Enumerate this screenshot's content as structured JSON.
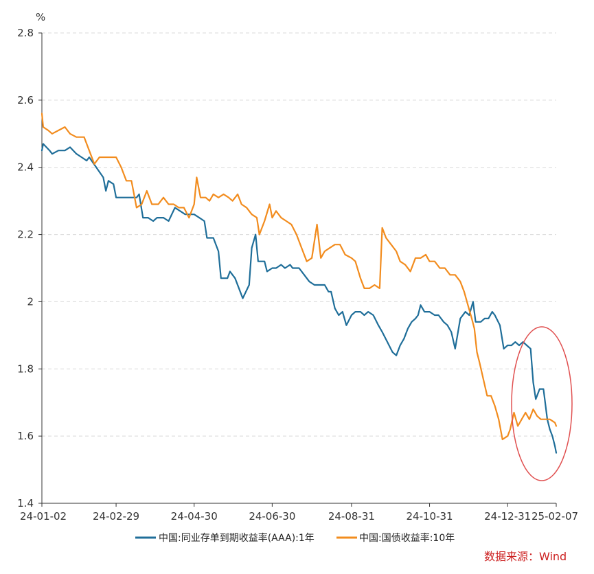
{
  "chart_data": {
    "type": "line",
    "title": "",
    "unit": "%",
    "xlabel": "",
    "ylabel": "%",
    "ylim": [
      1.4,
      2.8
    ],
    "yticks": [
      "1.4",
      "1.6",
      "1.8",
      "2",
      "2.2",
      "2.4",
      "2.6",
      "2.8"
    ],
    "yticks_values": [
      1.4,
      1.6,
      1.8,
      2.0,
      2.2,
      2.4,
      2.6,
      2.8
    ],
    "xlim": [
      "24-01-02",
      "25-02-07"
    ],
    "xticks": [
      "24-01-02",
      "24-02-29",
      "24-04-30",
      "24-06-30",
      "24-08-31",
      "24-10-31",
      "24-12-31",
      "25-02-07"
    ],
    "grid": "horizontal-dashed",
    "legend_position": "bottom",
    "series": [
      {
        "name": "中国:同业存单到期收益率(AAA):1年",
        "color": "#1f6e99",
        "points": [
          [
            "24-01-02",
            2.45
          ],
          [
            "24-01-03",
            2.47
          ],
          [
            "24-01-08",
            2.45
          ],
          [
            "24-01-10",
            2.44
          ],
          [
            "24-01-15",
            2.45
          ],
          [
            "24-01-20",
            2.45
          ],
          [
            "24-01-24",
            2.46
          ],
          [
            "24-01-29",
            2.44
          ],
          [
            "24-02-02",
            2.43
          ],
          [
            "24-02-06",
            2.42
          ],
          [
            "24-02-08",
            2.43
          ],
          [
            "24-02-19",
            2.37
          ],
          [
            "24-02-21",
            2.33
          ],
          [
            "24-02-23",
            2.36
          ],
          [
            "24-02-27",
            2.35
          ],
          [
            "24-02-29",
            2.31
          ],
          [
            "24-03-04",
            2.31
          ],
          [
            "24-03-10",
            2.31
          ],
          [
            "24-03-16",
            2.31
          ],
          [
            "24-03-18",
            2.32
          ],
          [
            "24-03-21",
            2.25
          ],
          [
            "24-03-25",
            2.25
          ],
          [
            "24-03-29",
            2.24
          ],
          [
            "24-04-01",
            2.25
          ],
          [
            "24-04-06",
            2.25
          ],
          [
            "24-04-10",
            2.24
          ],
          [
            "24-04-15",
            2.28
          ],
          [
            "24-04-19",
            2.27
          ],
          [
            "24-04-23",
            2.26
          ],
          [
            "24-04-27",
            2.26
          ],
          [
            "24-04-30",
            2.26
          ],
          [
            "24-05-04",
            2.25
          ],
          [
            "24-05-08",
            2.24
          ],
          [
            "24-05-10",
            2.19
          ],
          [
            "24-05-15",
            2.19
          ],
          [
            "24-05-19",
            2.15
          ],
          [
            "24-05-21",
            2.07
          ],
          [
            "24-05-26",
            2.07
          ],
          [
            "24-05-28",
            2.09
          ],
          [
            "24-06-01",
            2.07
          ],
          [
            "24-06-05",
            2.03
          ],
          [
            "24-06-07",
            2.01
          ],
          [
            "24-06-12",
            2.05
          ],
          [
            "24-06-14",
            2.16
          ],
          [
            "24-06-17",
            2.2
          ],
          [
            "24-06-19",
            2.12
          ],
          [
            "24-06-24",
            2.12
          ],
          [
            "24-06-26",
            2.09
          ],
          [
            "24-06-30",
            2.1
          ],
          [
            "24-07-03",
            2.1
          ],
          [
            "24-07-07",
            2.11
          ],
          [
            "24-07-10",
            2.1
          ],
          [
            "24-07-14",
            2.11
          ],
          [
            "24-07-16",
            2.1
          ],
          [
            "24-07-21",
            2.1
          ],
          [
            "24-07-25",
            2.08
          ],
          [
            "24-07-29",
            2.06
          ],
          [
            "24-08-02",
            2.05
          ],
          [
            "24-08-06",
            2.05
          ],
          [
            "24-08-10",
            2.05
          ],
          [
            "24-08-13",
            2.03
          ],
          [
            "24-08-15",
            2.03
          ],
          [
            "24-08-18",
            1.98
          ],
          [
            "24-08-21",
            1.96
          ],
          [
            "24-08-24",
            1.97
          ],
          [
            "24-08-27",
            1.93
          ],
          [
            "24-08-31",
            1.96
          ],
          [
            "24-09-03",
            1.97
          ],
          [
            "24-09-07",
            1.97
          ],
          [
            "24-09-10",
            1.96
          ],
          [
            "24-09-13",
            1.97
          ],
          [
            "24-09-17",
            1.96
          ],
          [
            "24-09-21",
            1.93
          ],
          [
            "24-09-24",
            1.91
          ],
          [
            "24-09-28",
            1.88
          ],
          [
            "24-10-02",
            1.85
          ],
          [
            "24-10-05",
            1.84
          ],
          [
            "24-10-08",
            1.87
          ],
          [
            "24-10-11",
            1.89
          ],
          [
            "24-10-14",
            1.92
          ],
          [
            "24-10-17",
            1.94
          ],
          [
            "24-10-20",
            1.95
          ],
          [
            "24-10-22",
            1.96
          ],
          [
            "24-10-24",
            1.99
          ],
          [
            "24-10-27",
            1.97
          ],
          [
            "24-10-31",
            1.97
          ],
          [
            "24-11-04",
            1.96
          ],
          [
            "24-11-07",
            1.96
          ],
          [
            "24-11-11",
            1.94
          ],
          [
            "24-11-14",
            1.93
          ],
          [
            "24-11-17",
            1.91
          ],
          [
            "24-11-20",
            1.86
          ],
          [
            "24-11-24",
            1.95
          ],
          [
            "24-11-28",
            1.97
          ],
          [
            "24-12-01",
            1.96
          ],
          [
            "24-12-04",
            2.0
          ],
          [
            "24-12-06",
            1.94
          ],
          [
            "24-12-10",
            1.94
          ],
          [
            "24-12-13",
            1.95
          ],
          [
            "24-12-16",
            1.95
          ],
          [
            "24-12-19",
            1.97
          ],
          [
            "24-12-21",
            1.96
          ],
          [
            "24-12-25",
            1.93
          ],
          [
            "24-12-28",
            1.86
          ],
          [
            "24-12-31",
            1.87
          ],
          [
            "25-01-03",
            1.87
          ],
          [
            "25-01-06",
            1.88
          ],
          [
            "25-01-09",
            1.87
          ],
          [
            "25-01-12",
            1.88
          ],
          [
            "25-01-15",
            1.87
          ],
          [
            "25-01-18",
            1.86
          ],
          [
            "25-01-20",
            1.76
          ],
          [
            "25-01-22",
            1.71
          ],
          [
            "25-01-25",
            1.74
          ],
          [
            "25-01-28",
            1.74
          ],
          [
            "25-01-31",
            1.65
          ],
          [
            "25-02-02",
            1.62
          ],
          [
            "25-02-04",
            1.6
          ],
          [
            "25-02-06",
            1.57
          ],
          [
            "25-02-07",
            1.55
          ]
        ]
      },
      {
        "name": "中国:国债收益率:10年",
        "color": "#f28c1e",
        "points": [
          [
            "24-01-02",
            2.56
          ],
          [
            "24-01-03",
            2.52
          ],
          [
            "24-01-07",
            2.51
          ],
          [
            "24-01-10",
            2.5
          ],
          [
            "24-01-15",
            2.51
          ],
          [
            "24-01-20",
            2.52
          ],
          [
            "24-01-24",
            2.5
          ],
          [
            "24-01-29",
            2.49
          ],
          [
            "24-02-04",
            2.49
          ],
          [
            "24-02-08",
            2.45
          ],
          [
            "24-02-12",
            2.41
          ],
          [
            "24-02-16",
            2.43
          ],
          [
            "24-02-20",
            2.43
          ],
          [
            "24-02-25",
            2.43
          ],
          [
            "24-02-29",
            2.43
          ],
          [
            "24-03-04",
            2.4
          ],
          [
            "24-03-08",
            2.36
          ],
          [
            "24-03-12",
            2.36
          ],
          [
            "24-03-16",
            2.28
          ],
          [
            "24-03-20",
            2.29
          ],
          [
            "24-03-24",
            2.33
          ],
          [
            "24-03-28",
            2.29
          ],
          [
            "24-04-02",
            2.29
          ],
          [
            "24-04-06",
            2.31
          ],
          [
            "24-04-10",
            2.29
          ],
          [
            "24-04-14",
            2.29
          ],
          [
            "24-04-18",
            2.28
          ],
          [
            "24-04-22",
            2.28
          ],
          [
            "24-04-26",
            2.25
          ],
          [
            "24-04-30",
            2.29
          ],
          [
            "24-05-02",
            2.37
          ],
          [
            "24-05-05",
            2.31
          ],
          [
            "24-05-09",
            2.31
          ],
          [
            "24-05-12",
            2.3
          ],
          [
            "24-05-15",
            2.32
          ],
          [
            "24-05-19",
            2.31
          ],
          [
            "24-05-23",
            2.32
          ],
          [
            "24-05-27",
            2.31
          ],
          [
            "24-05-30",
            2.3
          ],
          [
            "24-06-03",
            2.32
          ],
          [
            "24-06-06",
            2.29
          ],
          [
            "24-06-10",
            2.28
          ],
          [
            "24-06-14",
            2.26
          ],
          [
            "24-06-18",
            2.25
          ],
          [
            "24-06-20",
            2.2
          ],
          [
            "24-06-24",
            2.24
          ],
          [
            "24-06-28",
            2.29
          ],
          [
            "24-06-30",
            2.25
          ],
          [
            "24-07-03",
            2.27
          ],
          [
            "24-07-07",
            2.25
          ],
          [
            "24-07-11",
            2.24
          ],
          [
            "24-07-15",
            2.23
          ],
          [
            "24-07-19",
            2.2
          ],
          [
            "24-07-23",
            2.16
          ],
          [
            "24-07-27",
            2.12
          ],
          [
            "24-07-31",
            2.13
          ],
          [
            "24-08-04",
            2.23
          ],
          [
            "24-08-07",
            2.13
          ],
          [
            "24-08-10",
            2.15
          ],
          [
            "24-08-14",
            2.16
          ],
          [
            "24-08-18",
            2.17
          ],
          [
            "24-08-22",
            2.17
          ],
          [
            "24-08-26",
            2.14
          ],
          [
            "24-08-31",
            2.13
          ],
          [
            "24-09-03",
            2.12
          ],
          [
            "24-09-07",
            2.07
          ],
          [
            "24-09-10",
            2.04
          ],
          [
            "24-09-14",
            2.04
          ],
          [
            "24-09-18",
            2.05
          ],
          [
            "24-09-22",
            2.04
          ],
          [
            "24-09-24",
            2.22
          ],
          [
            "24-09-27",
            2.19
          ],
          [
            "24-10-01",
            2.17
          ],
          [
            "24-10-05",
            2.15
          ],
          [
            "24-10-08",
            2.12
          ],
          [
            "24-10-12",
            2.11
          ],
          [
            "24-10-16",
            2.09
          ],
          [
            "24-10-20",
            2.13
          ],
          [
            "24-10-24",
            2.13
          ],
          [
            "24-10-28",
            2.14
          ],
          [
            "24-10-31",
            2.12
          ],
          [
            "24-11-04",
            2.12
          ],
          [
            "24-11-08",
            2.1
          ],
          [
            "24-11-12",
            2.1
          ],
          [
            "24-11-16",
            2.08
          ],
          [
            "24-11-20",
            2.08
          ],
          [
            "24-11-24",
            2.06
          ],
          [
            "24-11-27",
            2.03
          ],
          [
            "24-11-30",
            1.99
          ],
          [
            "24-12-03",
            1.95
          ],
          [
            "24-12-05",
            1.92
          ],
          [
            "24-12-07",
            1.85
          ],
          [
            "24-12-09",
            1.82
          ],
          [
            "24-12-12",
            1.77
          ],
          [
            "24-12-15",
            1.72
          ],
          [
            "24-12-18",
            1.72
          ],
          [
            "24-12-21",
            1.69
          ],
          [
            "24-12-24",
            1.65
          ],
          [
            "24-12-27",
            1.59
          ],
          [
            "24-12-31",
            1.6
          ],
          [
            "25-01-02",
            1.62
          ],
          [
            "25-01-05",
            1.67
          ],
          [
            "25-01-08",
            1.63
          ],
          [
            "25-01-11",
            1.65
          ],
          [
            "25-01-14",
            1.67
          ],
          [
            "25-01-17",
            1.65
          ],
          [
            "25-01-20",
            1.68
          ],
          [
            "25-01-23",
            1.66
          ],
          [
            "25-01-26",
            1.65
          ],
          [
            "25-02-02",
            1.65
          ],
          [
            "25-02-06",
            1.64
          ],
          [
            "25-02-07",
            1.63
          ]
        ]
      }
    ],
    "annotations": [
      {
        "type": "ellipse",
        "color": "#e05050",
        "description": "highlight of latest period"
      }
    ],
    "source": "数据来源：Wind"
  }
}
